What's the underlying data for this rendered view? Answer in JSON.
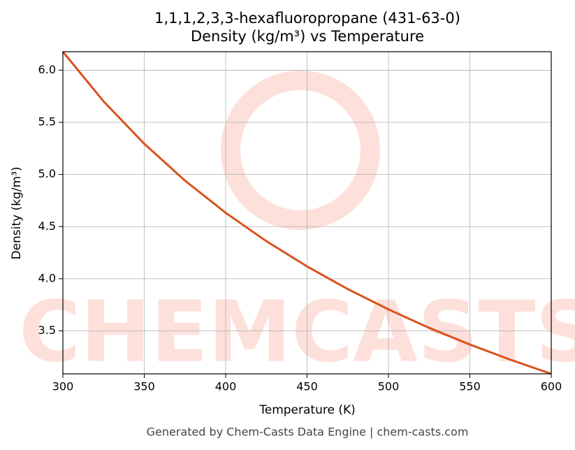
{
  "chart_data": {
    "type": "line",
    "title": "1,1,1,2,3,3-hexafluoropropane (431-63-0)",
    "subtitle": "Density (kg/m³) vs Temperature",
    "x_label": "Temperature (K)",
    "y_label": "Density (kg/m³)",
    "watermark": "CHEMCASTS",
    "footer": "Generated by Chem-Casts Data Engine | chem-casts.com",
    "x": [
      300,
      325,
      350,
      375,
      400,
      425,
      450,
      475,
      500,
      525,
      550,
      575,
      600
    ],
    "series": [
      {
        "name": "Density",
        "color": "#d9531e",
        "values": [
          6.177,
          5.701,
          5.294,
          4.941,
          4.632,
          4.36,
          4.118,
          3.901,
          3.706,
          3.529,
          3.369,
          3.223,
          3.088
        ]
      }
    ],
    "xlim": [
      300,
      600
    ],
    "xticks": [
      300,
      350,
      400,
      450,
      500,
      550,
      600
    ],
    "ylim": [
      3.088,
      6.177
    ],
    "yticks": [
      3.5,
      {
        "value": 4,
        "label": "4.0"
      },
      4.5,
      {
        "value": 5,
        "label": "5.0"
      },
      5.5,
      {
        "value": 6,
        "label": "6.0"
      }
    ],
    "grid": true
  }
}
